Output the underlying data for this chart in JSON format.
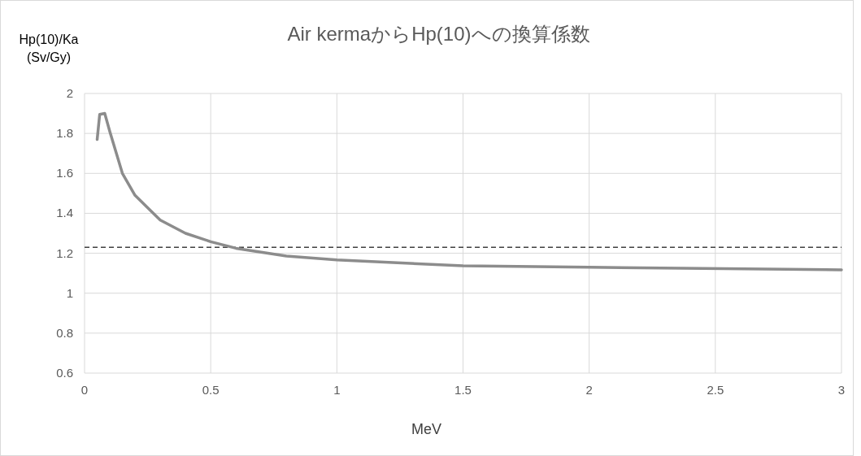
{
  "chart_data": {
    "type": "line",
    "title": "Air kermaからHp(10)への換算係数",
    "xlabel": "MeV",
    "ylabel": "Hp(10)/Ka\n(Sv/Gy)",
    "x": [
      0.05,
      0.06,
      0.08,
      0.1,
      0.15,
      0.2,
      0.3,
      0.4,
      0.5,
      0.6,
      0.8,
      1,
      1.5,
      2,
      3
    ],
    "series": [
      {
        "color": "#8c8c8c",
        "values": [
          1.77,
          1.895,
          1.9,
          1.81,
          1.6,
          1.49,
          1.366,
          1.3,
          1.258,
          1.225,
          1.186,
          1.167,
          1.137,
          1.13,
          1.117
        ]
      }
    ],
    "xlim": [
      0,
      3
    ],
    "xticks": [
      0,
      0.5,
      1,
      1.5,
      2,
      2.5,
      3
    ],
    "ylim": [
      0.6,
      2
    ],
    "yticks": [
      0.6,
      0.8,
      1,
      1.2,
      1.4,
      1.6,
      1.8,
      2
    ],
    "ref_lines": [
      {
        "axis": "y",
        "value": 1.23,
        "color": "#404040",
        "line_style": "dashed"
      }
    ],
    "grid": true,
    "marker": "none",
    "line_style": "solid"
  }
}
